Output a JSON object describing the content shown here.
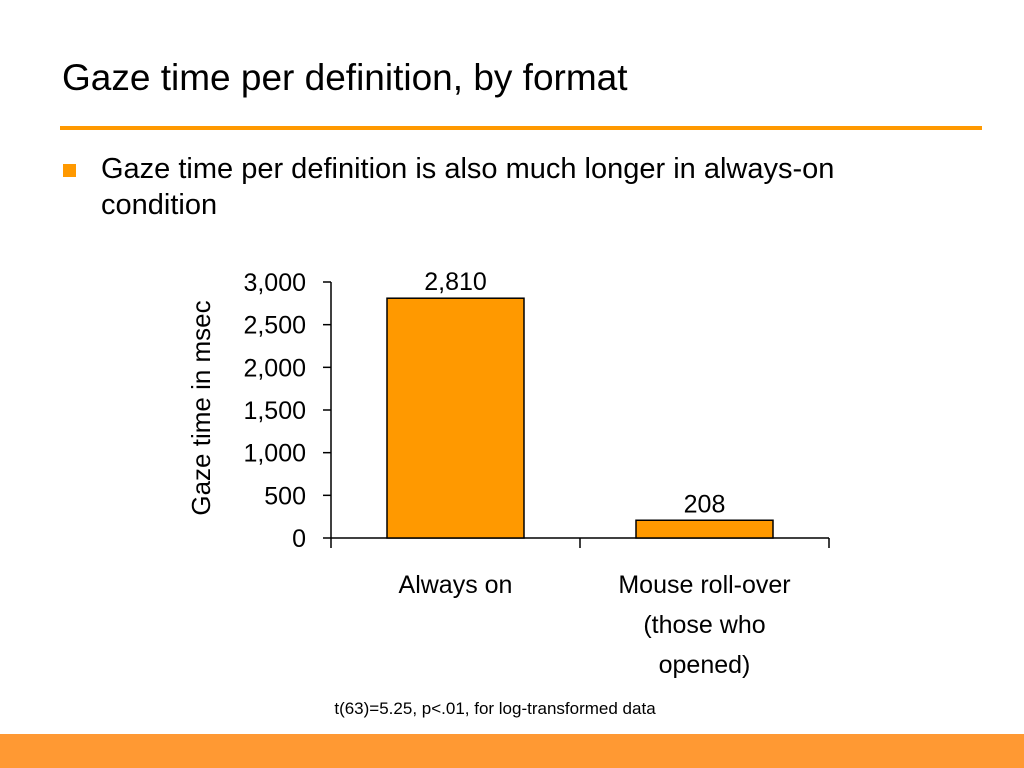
{
  "slide": {
    "title": "Gaze time per definition, by format",
    "bullet": "Gaze time per definition is also much longer in always-on condition",
    "note": "t(63)=5.25, p<.01, for log-transformed data"
  },
  "colors": {
    "accent": "#ff9900",
    "bar_fill": "#ff9900",
    "bar_stroke": "#000000",
    "footer": "#ff9933"
  },
  "chart_data": {
    "type": "bar",
    "categories": [
      "Always on",
      "Mouse roll-over (those who opened)"
    ],
    "category_lines": [
      [
        "Always on"
      ],
      [
        "Mouse roll-over",
        "(those who",
        "opened)"
      ]
    ],
    "values": [
      2810,
      208
    ],
    "value_labels": [
      "2,810",
      "208"
    ],
    "ylabel": "Gaze time in msec",
    "ylim": [
      0,
      3000
    ],
    "yticks": [
      0,
      500,
      1000,
      1500,
      2000,
      2500,
      3000
    ],
    "ytick_labels": [
      "0",
      "500",
      "1,000",
      "1,500",
      "2,000",
      "2,500",
      "3,000"
    ],
    "grid": false,
    "legend": "none"
  }
}
